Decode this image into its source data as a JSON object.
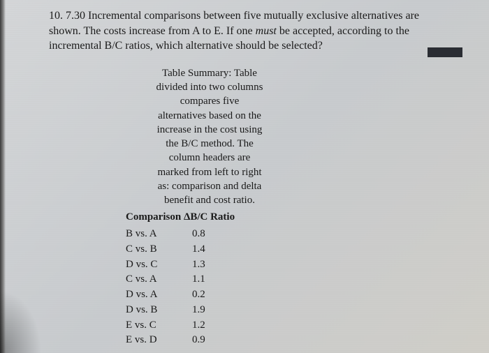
{
  "question": {
    "number": "10. 7.30",
    "text_part1": " Incremental comparisons between five mutually exclusive alternatives are shown. The costs increase from A to E. If one ",
    "must": "must",
    "text_part2": " be accepted, according to the incremental B/C ratios, which alternative should be selected?"
  },
  "summary": {
    "line1": "Table Summary: Table",
    "line2": "divided into two columns",
    "line3": "compares five",
    "line4": "alternatives based on the",
    "line5": "increase in the cost using",
    "line6": "the B/C method. The",
    "line7": "column headers are",
    "line8": "marked from left to right",
    "line9": "as: comparison and delta",
    "line10": "benefit and cost ratio."
  },
  "table": {
    "header_comp": "Comparison",
    "header_val": "ΔB/C Ratio",
    "rows": [
      {
        "comp": "B vs. A",
        "val": "0.8"
      },
      {
        "comp": "C vs. B",
        "val": "1.4"
      },
      {
        "comp": "D vs. C",
        "val": "1.3"
      },
      {
        "comp": "C vs. A",
        "val": "1.1"
      },
      {
        "comp": "D vs. A",
        "val": "0.2"
      },
      {
        "comp": "D vs. B",
        "val": "1.9"
      },
      {
        "comp": "E vs. C",
        "val": "1.2"
      },
      {
        "comp": "E vs. D",
        "val": "0.9"
      }
    ]
  }
}
